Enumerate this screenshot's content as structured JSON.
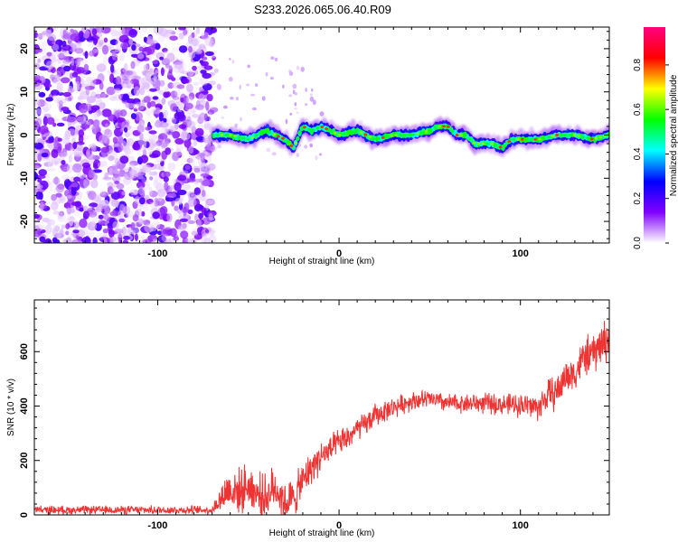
{
  "title": "S233.2026.065.06.40.R09",
  "chart_data": [
    {
      "type": "heatmap",
      "name": "spectrogram",
      "xlabel": "Height of straight line (km)",
      "ylabel": "Frequency (Hz)",
      "xlim": [
        -168,
        149
      ],
      "ylim": [
        -25,
        25
      ],
      "x_ticks": [
        -100,
        0,
        100
      ],
      "y_ticks": [
        -20,
        -10,
        0,
        10,
        20
      ],
      "colorbar": {
        "label": "Normalized spectral amplitude",
        "range": [
          0,
          0.97
        ],
        "ticks": [
          0.0,
          0.2,
          0.4,
          0.6,
          0.8
        ],
        "colors": [
          "#ffffff",
          "#8000ff",
          "#0000ff",
          "#00ffff",
          "#00ff00",
          "#ffff00",
          "#ff0000",
          "#ff0080"
        ]
      },
      "noise_region_x": [
        -168,
        -69
      ],
      "ridge": {
        "x_start": -69,
        "x_end": 149,
        "x": [
          -69,
          -60,
          -50,
          -45,
          -40,
          -35,
          -30,
          -25,
          -22,
          -20,
          -15,
          -10,
          -5,
          0,
          10,
          20,
          30,
          40,
          50,
          55,
          60,
          65,
          70,
          75,
          80,
          85,
          90,
          95,
          100,
          110,
          120,
          130,
          140,
          149
        ],
        "freq_hz": [
          0,
          0,
          -1,
          0,
          1,
          0,
          -1,
          -3,
          0,
          2,
          1,
          2,
          1,
          0,
          1,
          -1,
          0,
          0,
          1,
          2,
          2,
          0,
          0,
          -2,
          -2,
          -2,
          -3,
          -1,
          -1,
          -1,
          0,
          0,
          -1,
          0
        ]
      }
    },
    {
      "type": "line",
      "name": "snr",
      "xlabel": "Height of straight line (km)",
      "ylabel": "SNR (10 * v/v)",
      "xlim": [
        -168,
        149
      ],
      "ylim": [
        0,
        790
      ],
      "x_ticks": [
        -100,
        0,
        100
      ],
      "y_ticks": [
        0,
        200,
        400,
        600
      ],
      "color": "#ee3333",
      "x": [
        -168,
        -140,
        -100,
        -70,
        -61,
        -55,
        -50,
        -45,
        -40,
        -35,
        -30,
        -25,
        -20,
        -15,
        -10,
        -5,
        0,
        5,
        10,
        15,
        20,
        25,
        30,
        40,
        50,
        60,
        70,
        80,
        90,
        100,
        105,
        110,
        115,
        120,
        125,
        130,
        135,
        140,
        145,
        149
      ],
      "y": [
        18,
        18,
        18,
        18,
        95,
        85,
        110,
        75,
        65,
        105,
        45,
        60,
        125,
        175,
        215,
        235,
        265,
        285,
        315,
        335,
        365,
        380,
        395,
        420,
        425,
        410,
        410,
        410,
        405,
        405,
        400,
        395,
        440,
        450,
        510,
        520,
        580,
        590,
        630,
        650
      ],
      "noise_amplitude": [
        14,
        14,
        14,
        14,
        75,
        75,
        75,
        75,
        75,
        75,
        70,
        70,
        60,
        55,
        55,
        50,
        45,
        45,
        40,
        40,
        40,
        35,
        35,
        32,
        32,
        32,
        32,
        35,
        35,
        40,
        45,
        45,
        55,
        60,
        60,
        60,
        65,
        70,
        75,
        75
      ]
    }
  ]
}
